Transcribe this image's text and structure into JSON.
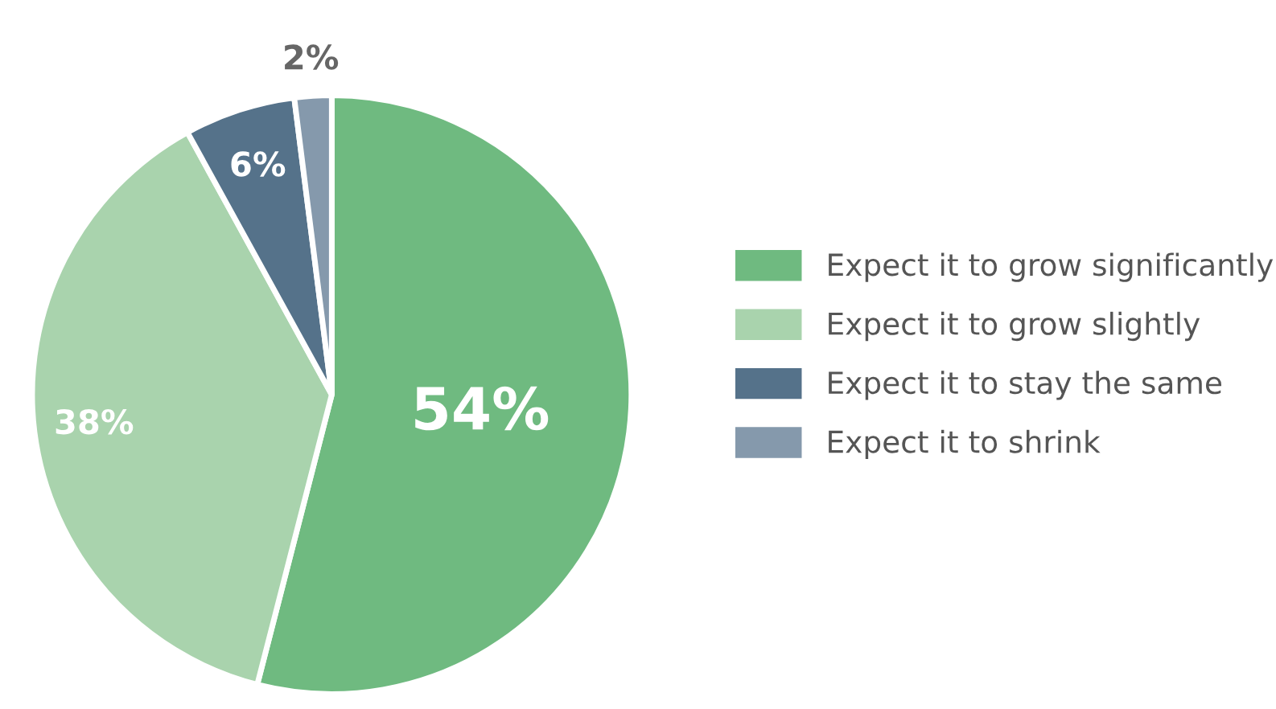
{
  "chart_data": {
    "type": "pie",
    "categories": [
      "Expect it to grow significantly",
      "Expect it to grow slightly",
      "Expect it to stay the same",
      "Expect it to shrink"
    ],
    "values": [
      54,
      38,
      6,
      2
    ],
    "colors": [
      "#6fba80",
      "#a9d3ad",
      "#55728a",
      "#8599ac"
    ],
    "value_labels": [
      "54%",
      "38%",
      "6%",
      "2%"
    ],
    "legend": "right"
  }
}
